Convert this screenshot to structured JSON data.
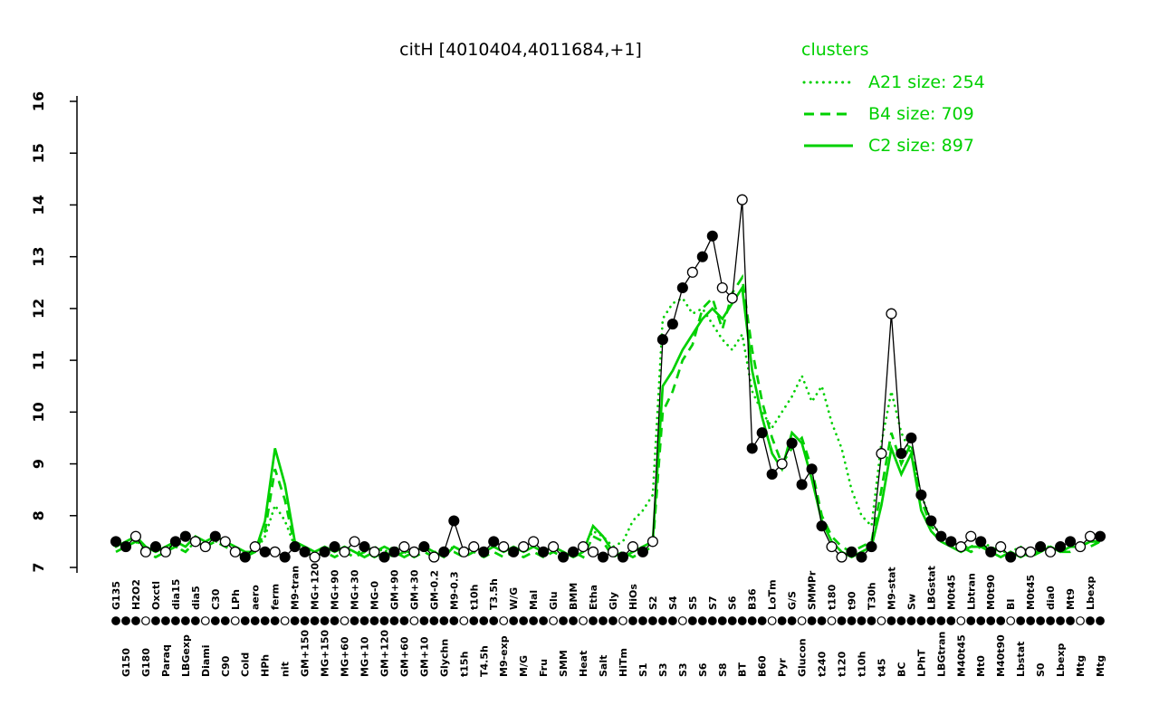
{
  "title": "citH [4010404,4011684,+1]",
  "colors": {
    "cluster_green": "#00d000",
    "series_black": "#000000",
    "open_marker_fill": "#ffffff"
  },
  "legend": {
    "title": "clusters",
    "entries": [
      {
        "label": "A21 size: 254",
        "style": "dotted"
      },
      {
        "label": "B4 size: 709",
        "style": "dashed"
      },
      {
        "label": "C2 size: 897",
        "style": "solid"
      }
    ]
  },
  "chart_data": {
    "type": "line",
    "title": "citH [4010404,4011684,+1]",
    "xlabel": "",
    "ylabel": "",
    "ylim": [
      7,
      16
    ],
    "yticks": [
      7,
      8,
      9,
      10,
      11,
      12,
      13,
      14,
      15,
      16
    ],
    "grid": false,
    "legend_position": "top-right",
    "categories": [
      "G135",
      "G150",
      "H2O2",
      "G180",
      "Oxctl",
      "Paraq",
      "dia15",
      "LBGexp",
      "dia5",
      "Diami",
      "C30",
      "C90",
      "LPh",
      "Cold",
      "aero",
      "HPh",
      "ferm",
      "nit",
      "M9-tran",
      "GM+150",
      "MG+120",
      "MG+150",
      "MG+90",
      "MG+60",
      "MG+30",
      "MG+10",
      "MG-0",
      "GM+120",
      "GM+90",
      "GM+60",
      "GM+30",
      "GM+10",
      "GM-0.2",
      "Glychn",
      "M9-0.3",
      "t15h",
      "t10h",
      "T4.5h",
      "T3.5h",
      "M9-exp",
      "W/G",
      "M/G",
      "Mal",
      "Fru",
      "Glu",
      "SMM",
      "BMM",
      "Heat",
      "Etha",
      "Salt",
      "Gly",
      "HiTm",
      "HiOs",
      "S1",
      "S2",
      "S3",
      "S4",
      "S3",
      "S5",
      "S6",
      "S7",
      "S8",
      "S6",
      "BT",
      "B36",
      "B60",
      "LoTm",
      "Pyr",
      "G/S",
      "Glucon",
      "SMMPr",
      "t240",
      "t180",
      "t120",
      "t90",
      "t10h",
      "T30h",
      "t45",
      "M9-stat",
      "BC",
      "Sw",
      "LPhT",
      "LBGstat",
      "LBGtran",
      "M0t45",
      "M40t45",
      "Lbtran",
      "Mt0",
      "M0t90",
      "M40t90",
      "BI",
      "Lbstat",
      "M0t45",
      "S0",
      "dia0",
      "Lbexp",
      "Mt9",
      "Mtg",
      "Lbexp",
      "Mtg"
    ],
    "series": [
      {
        "name": "A21",
        "style": "dotted",
        "color": "#00d000",
        "values": [
          7.4,
          7.4,
          7.5,
          7.4,
          7.3,
          7.4,
          7.4,
          7.3,
          7.5,
          7.4,
          7.5,
          7.5,
          7.4,
          7.3,
          7.3,
          7.6,
          8.2,
          7.9,
          7.4,
          7.4,
          7.3,
          7.4,
          7.3,
          7.4,
          7.3,
          7.3,
          7.4,
          7.3,
          7.4,
          7.3,
          7.3,
          7.4,
          7.3,
          7.3,
          7.4,
          7.3,
          7.4,
          7.3,
          7.4,
          7.3,
          7.4,
          7.3,
          7.4,
          7.3,
          7.4,
          7.3,
          7.3,
          7.4,
          7.7,
          7.6,
          7.4,
          7.5,
          7.9,
          8.1,
          8.4,
          11.8,
          12.1,
          12.2,
          11.9,
          12.0,
          11.7,
          11.4,
          11.2,
          11.5,
          10.4,
          10.0,
          9.7,
          10.0,
          10.3,
          10.7,
          10.2,
          10.5,
          9.8,
          9.3,
          8.5,
          8.0,
          7.8,
          9.4,
          10.4,
          9.6,
          9.2,
          8.4,
          7.9,
          7.6,
          7.5,
          7.4,
          7.4,
          7.5,
          7.4,
          7.3,
          7.3,
          7.4,
          7.3,
          7.4,
          7.4,
          7.3,
          7.4,
          7.4,
          7.5,
          7.5
        ]
      },
      {
        "name": "B4",
        "style": "dashed",
        "color": "#00d000",
        "values": [
          7.3,
          7.4,
          7.5,
          7.3,
          7.2,
          7.3,
          7.4,
          7.3,
          7.5,
          7.4,
          7.5,
          7.4,
          7.3,
          7.2,
          7.3,
          7.7,
          8.9,
          8.3,
          7.4,
          7.3,
          7.2,
          7.3,
          7.2,
          7.3,
          7.2,
          7.3,
          7.2,
          7.3,
          7.2,
          7.3,
          7.2,
          7.3,
          7.2,
          7.3,
          7.3,
          7.2,
          7.3,
          7.2,
          7.3,
          7.2,
          7.3,
          7.2,
          7.3,
          7.2,
          7.3,
          7.2,
          7.3,
          7.2,
          7.6,
          7.5,
          7.2,
          7.3,
          7.2,
          7.3,
          7.4,
          10.0,
          10.4,
          11.0,
          11.3,
          12.0,
          12.2,
          11.6,
          12.3,
          12.6,
          11.2,
          10.2,
          9.5,
          9.0,
          9.3,
          9.5,
          8.9,
          8.0,
          7.6,
          7.4,
          7.3,
          7.4,
          7.5,
          8.5,
          9.6,
          9.0,
          9.4,
          8.3,
          7.8,
          7.6,
          7.5,
          7.4,
          7.3,
          7.4,
          7.4,
          7.3,
          7.2,
          7.3,
          7.2,
          7.3,
          7.4,
          7.3,
          7.3,
          7.4,
          7.4,
          7.5
        ]
      },
      {
        "name": "C2",
        "style": "solid",
        "color": "#00d000",
        "values": [
          7.4,
          7.5,
          7.6,
          7.4,
          7.3,
          7.4,
          7.5,
          7.4,
          7.6,
          7.5,
          7.6,
          7.5,
          7.4,
          7.3,
          7.3,
          7.9,
          9.3,
          8.6,
          7.5,
          7.4,
          7.3,
          7.4,
          7.3,
          7.4,
          7.3,
          7.2,
          7.3,
          7.4,
          7.3,
          7.2,
          7.3,
          7.4,
          7.3,
          7.2,
          7.4,
          7.3,
          7.4,
          7.3,
          7.4,
          7.3,
          7.4,
          7.3,
          7.4,
          7.3,
          7.4,
          7.3,
          7.2,
          7.3,
          7.8,
          7.6,
          7.3,
          7.2,
          7.3,
          7.4,
          7.5,
          10.5,
          10.8,
          11.2,
          11.5,
          11.8,
          12.0,
          11.8,
          12.1,
          12.4,
          10.8,
          9.9,
          9.2,
          8.9,
          9.6,
          9.4,
          8.7,
          7.9,
          7.5,
          7.3,
          7.2,
          7.3,
          7.4,
          8.2,
          9.3,
          8.8,
          9.2,
          8.1,
          7.7,
          7.5,
          7.4,
          7.3,
          7.4,
          7.4,
          7.3,
          7.2,
          7.3,
          7.2,
          7.3,
          7.3,
          7.4,
          7.3,
          7.4,
          7.4,
          7.5,
          7.5
        ]
      },
      {
        "name": "gene",
        "style": "solid",
        "color": "#000000",
        "marker": "circle",
        "marker_fill": "ffoofoffoofoofofofffoffoofoffoofoffooffofoofoffoofofofofffoffooofffoffffoofffooffffffooffofoofoffooff",
        "values": [
          7.5,
          7.4,
          7.6,
          7.3,
          7.4,
          7.3,
          7.5,
          7.6,
          7.5,
          7.4,
          7.6,
          7.5,
          7.3,
          7.2,
          7.4,
          7.3,
          7.3,
          7.2,
          7.4,
          7.3,
          7.2,
          7.3,
          7.4,
          7.3,
          7.5,
          7.4,
          7.3,
          7.2,
          7.3,
          7.4,
          7.3,
          7.4,
          7.2,
          7.3,
          7.9,
          7.3,
          7.4,
          7.3,
          7.5,
          7.4,
          7.3,
          7.4,
          7.5,
          7.3,
          7.4,
          7.2,
          7.3,
          7.4,
          7.3,
          7.2,
          7.3,
          7.2,
          7.4,
          7.3,
          7.5,
          11.4,
          11.7,
          12.4,
          12.7,
          13.0,
          13.4,
          12.4,
          12.2,
          14.1,
          9.3,
          9.6,
          8.8,
          9.0,
          9.4,
          8.6,
          8.9,
          7.8,
          7.4,
          7.2,
          7.3,
          7.2,
          7.4,
          9.2,
          11.9,
          9.2,
          9.5,
          8.4,
          7.9,
          7.6,
          7.5,
          7.4,
          7.6,
          7.5,
          7.3,
          7.4,
          7.2,
          7.3,
          7.3,
          7.4,
          7.3,
          7.4,
          7.5,
          7.4,
          7.6,
          7.6
        ]
      }
    ],
    "axis_markers": "fffofffffoffoffffofffffoffffffoffffofffoffffoffofffofffffoffffffffoffoffoffffofffffffoffffoffffffoff"
  }
}
